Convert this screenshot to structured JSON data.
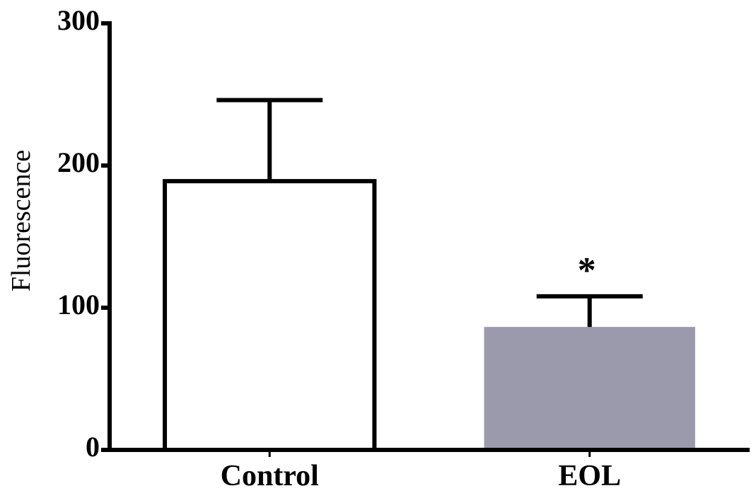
{
  "chart_data": {
    "type": "bar",
    "categories": [
      "Control",
      "EOL"
    ],
    "values": [
      189,
      86
    ],
    "errors": [
      57,
      22
    ],
    "colors": [
      "#ffffff",
      "#9b9aad"
    ],
    "ylabel": "Fluorescence",
    "annotation": "*",
    "ylim": [
      0,
      300
    ],
    "yticks": [
      0,
      100,
      200,
      300
    ]
  }
}
